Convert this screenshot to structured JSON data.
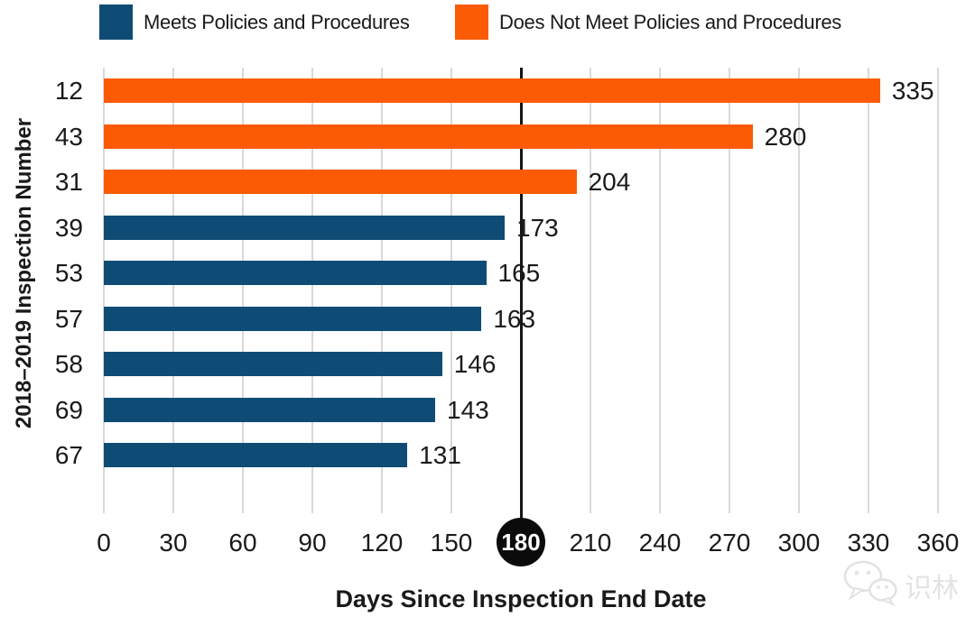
{
  "legend": {
    "items": [
      {
        "label": "Meets Policies and Procedures",
        "color": "#0f4c75"
      },
      {
        "label": "Does Not Meet Policies and Procedures",
        "color": "#fb5b05"
      }
    ]
  },
  "chart_data": {
    "type": "bar",
    "orientation": "horizontal",
    "title": "",
    "xlabel": "Days Since Inspection End Date",
    "ylabel": "2018–2019 Inspection Number",
    "xlim": [
      0,
      360
    ],
    "x_ticks": [
      0,
      30,
      60,
      90,
      120,
      150,
      180,
      210,
      240,
      270,
      300,
      330,
      360
    ],
    "highlight_tick": 180,
    "reference_line_x": 180,
    "grid": true,
    "legend_position": "top",
    "categories": [
      "12",
      "43",
      "31",
      "39",
      "53",
      "57",
      "58",
      "69",
      "67"
    ],
    "values": [
      335,
      280,
      204,
      173,
      165,
      163,
      146,
      143,
      131
    ],
    "series_by_row": [
      "does_not_meet",
      "does_not_meet",
      "does_not_meet",
      "meets",
      "meets",
      "meets",
      "meets",
      "meets",
      "meets"
    ],
    "series_labels": {
      "meets": "Meets Policies and Procedures",
      "does_not_meet": "Does Not Meet Policies and Procedures"
    },
    "colors": {
      "meets": "#0f4c75",
      "does_not_meet": "#fb5b05"
    },
    "gridline_color": "#d9d9d9",
    "reference_line_color": "#161616"
  },
  "watermark": {
    "text": "识林"
  }
}
